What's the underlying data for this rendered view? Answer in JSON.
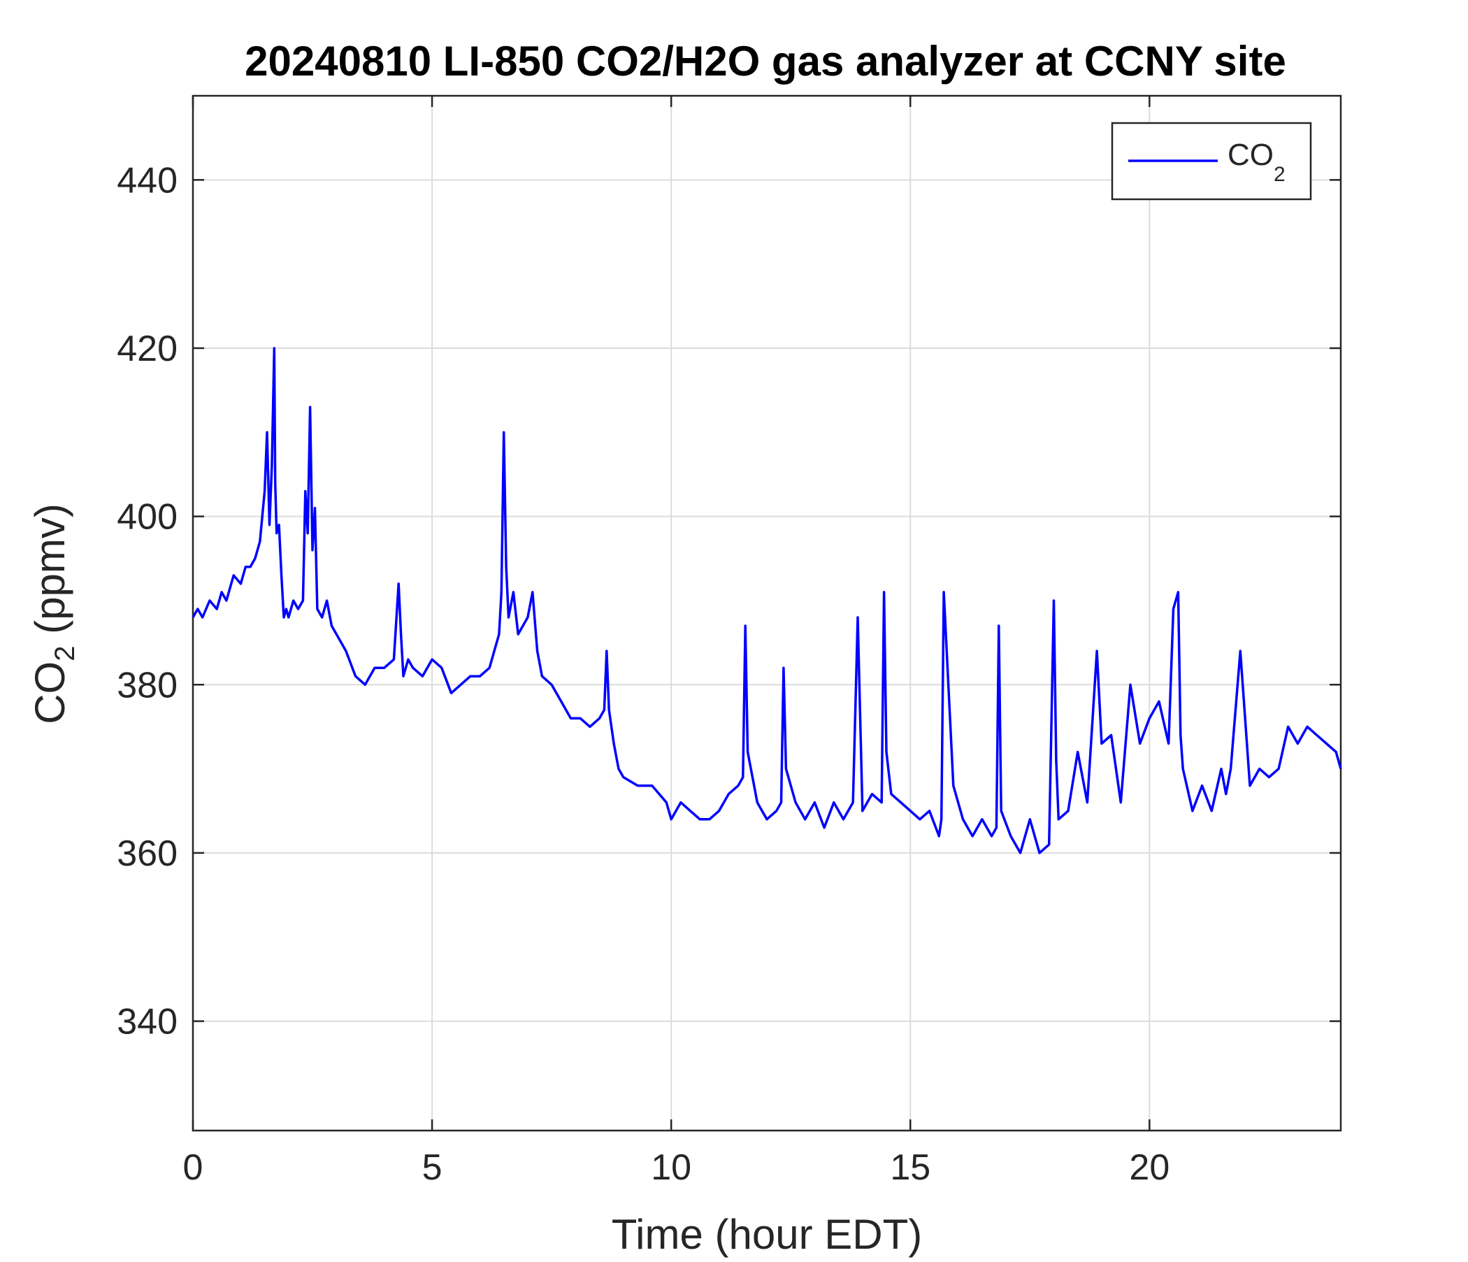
{
  "chart_data": {
    "type": "line",
    "title": "20240810 LI-850 CO2/H2O gas analyzer at CCNY site",
    "xlabel": "Time (hour EDT)",
    "ylabel": {
      "main": "CO",
      "sub": "2",
      "unit": " (ppmv)"
    },
    "xlim": [
      0,
      24
    ],
    "ylim": [
      327,
      450
    ],
    "x_ticks": [
      0,
      5,
      10,
      15,
      20
    ],
    "y_ticks": [
      340,
      360,
      380,
      400,
      420,
      440
    ],
    "grid": true,
    "legend": {
      "position": "top-right",
      "entries": [
        {
          "label": "CO",
          "sub": "2"
        }
      ]
    },
    "colors": {
      "series": "#0000ff",
      "axis": "#262626",
      "grid": "#dcdcdc",
      "text": "#262626",
      "title": "#000000"
    },
    "series": [
      {
        "name": "CO2",
        "x": [
          0,
          0.1,
          0.2,
          0.35,
          0.5,
          0.6,
          0.7,
          0.85,
          1.0,
          1.1,
          1.2,
          1.3,
          1.4,
          1.5,
          1.55,
          1.6,
          1.65,
          1.7,
          1.72,
          1.75,
          1.8,
          1.85,
          1.9,
          1.95,
          2.0,
          2.1,
          2.2,
          2.3,
          2.35,
          2.4,
          2.45,
          2.5,
          2.55,
          2.6,
          2.7,
          2.8,
          2.9,
          3.0,
          3.2,
          3.4,
          3.6,
          3.8,
          4.0,
          4.2,
          4.3,
          4.35,
          4.4,
          4.5,
          4.6,
          4.8,
          5.0,
          5.2,
          5.4,
          5.6,
          5.8,
          6.0,
          6.2,
          6.4,
          6.45,
          6.5,
          6.55,
          6.6,
          6.7,
          6.8,
          7.0,
          7.1,
          7.2,
          7.3,
          7.5,
          7.7,
          7.9,
          8.1,
          8.3,
          8.5,
          8.6,
          8.65,
          8.7,
          8.8,
          8.9,
          9.0,
          9.3,
          9.6,
          9.9,
          10.0,
          10.2,
          10.4,
          10.6,
          10.8,
          11.0,
          11.2,
          11.4,
          11.5,
          11.55,
          11.6,
          11.8,
          12.0,
          12.2,
          12.3,
          12.35,
          12.4,
          12.6,
          12.8,
          13.0,
          13.2,
          13.4,
          13.6,
          13.8,
          13.9,
          14.0,
          14.2,
          14.4,
          14.45,
          14.5,
          14.6,
          14.8,
          15.0,
          15.2,
          15.4,
          15.6,
          15.65,
          15.7,
          15.9,
          16.1,
          16.3,
          16.5,
          16.7,
          16.8,
          16.85,
          16.9,
          17.1,
          17.3,
          17.5,
          17.7,
          17.9,
          18.0,
          18.05,
          18.1,
          18.3,
          18.5,
          18.7,
          18.9,
          19.0,
          19.2,
          19.4,
          19.6,
          19.8,
          20.0,
          20.2,
          20.4,
          20.5,
          20.6,
          20.65,
          20.7,
          20.9,
          21.1,
          21.3,
          21.5,
          21.6,
          21.7,
          21.9,
          22.1,
          22.3,
          22.5,
          22.7,
          22.9,
          23.1,
          23.3,
          23.5,
          23.7,
          23.9,
          24.0
        ],
        "values": [
          388,
          389,
          388,
          390,
          389,
          391,
          390,
          393,
          392,
          394,
          394,
          395,
          397,
          403,
          410,
          399,
          406,
          420,
          404,
          398,
          399,
          393,
          388,
          389,
          388,
          390,
          389,
          390,
          403,
          398,
          413,
          396,
          401,
          389,
          388,
          390,
          387,
          386,
          384,
          381,
          380,
          382,
          382,
          383,
          392,
          386,
          381,
          383,
          382,
          381,
          383,
          382,
          379,
          380,
          381,
          381,
          382,
          386,
          391,
          410,
          394,
          388,
          391,
          386,
          388,
          391,
          384,
          381,
          380,
          378,
          376,
          376,
          375,
          376,
          377,
          384,
          377,
          373,
          370,
          369,
          368,
          368,
          366,
          364,
          366,
          365,
          364,
          364,
          365,
          367,
          368,
          369,
          387,
          372,
          366,
          364,
          365,
          366,
          382,
          370,
          366,
          364,
          366,
          363,
          366,
          364,
          366,
          388,
          365,
          367,
          366,
          391,
          372,
          367,
          366,
          365,
          364,
          365,
          362,
          364,
          391,
          368,
          364,
          362,
          364,
          362,
          363,
          387,
          365,
          362,
          360,
          364,
          360,
          361,
          390,
          371,
          364,
          365,
          372,
          366,
          384,
          373,
          374,
          366,
          380,
          373,
          376,
          378,
          373,
          389,
          391,
          374,
          370,
          365,
          368,
          365,
          370,
          367,
          370,
          384,
          368,
          370,
          369,
          370,
          375,
          373,
          375,
          374,
          373,
          372,
          370
        ]
      }
    ]
  }
}
